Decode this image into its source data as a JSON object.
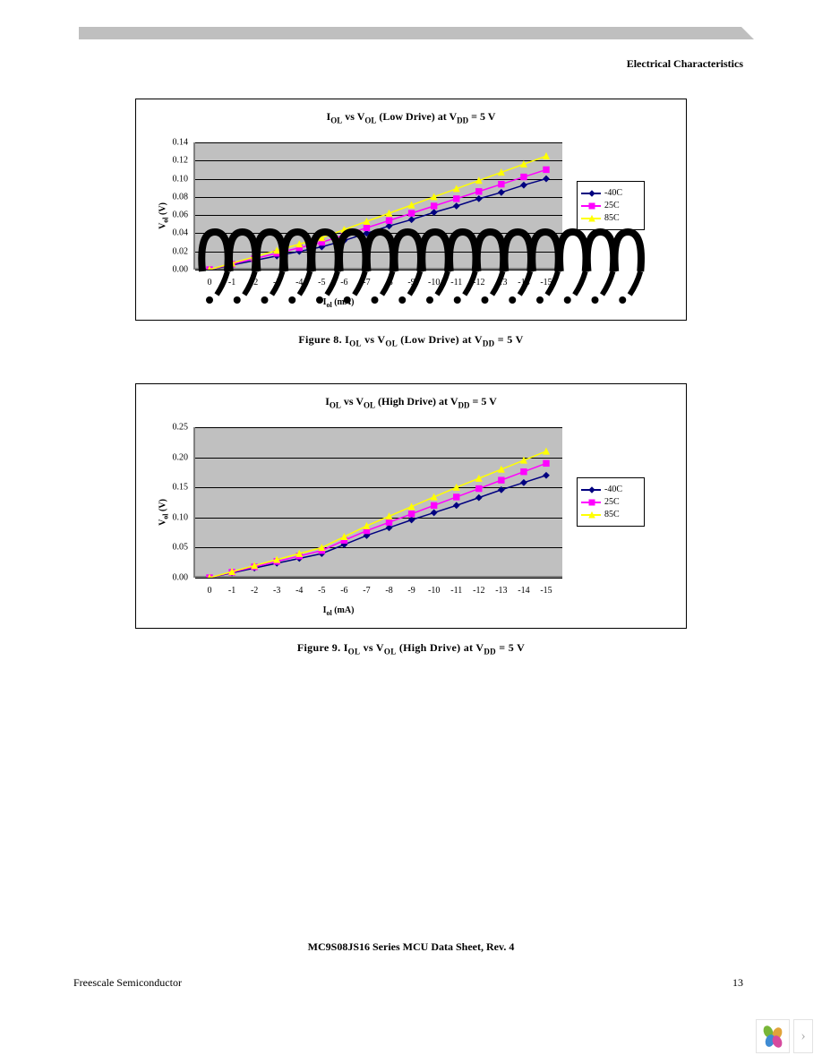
{
  "page": {
    "section_header": "Electrical Characteristics",
    "footer_title": "MC9S08JS16 Series MCU Data Sheet, Rev. 4",
    "footer_left": "Freescale Semiconductor",
    "page_number": "13"
  },
  "chart1": {
    "type": "line",
    "title_parts": [
      "I",
      "OL",
      " vs V",
      "OL",
      " (Low Drive) at V",
      "DD",
      " = 5 V"
    ],
    "ylabel_parts": [
      "V",
      "ol",
      " (V)"
    ],
    "xlabel_parts": [
      "I",
      "ol",
      " (mA)"
    ],
    "x_categories": [
      "0",
      "-1",
      "-2",
      "-3",
      "-4",
      "-5",
      "-6",
      "-7",
      "-8",
      "-9",
      "-10",
      "-11",
      "-12",
      "-13",
      "-14",
      "-15"
    ],
    "ylim": [
      0,
      0.14
    ],
    "ytick_step": 0.02,
    "yticks": [
      "0.00",
      "0.02",
      "0.04",
      "0.06",
      "0.08",
      "0.10",
      "0.12",
      "0.14"
    ],
    "plot_bg": "#c0c0c0",
    "grid_color": "#000000",
    "series": [
      {
        "name": "-40C",
        "color": "#000080",
        "marker": "diamond",
        "values": [
          0.0,
          0.005,
          0.01,
          0.015,
          0.02,
          0.025,
          0.032,
          0.04,
          0.048,
          0.055,
          0.063,
          0.07,
          0.078,
          0.085,
          0.093,
          0.1
        ]
      },
      {
        "name": "25C",
        "color": "#ff00ff",
        "marker": "square",
        "values": [
          0.0,
          0.006,
          0.012,
          0.018,
          0.024,
          0.03,
          0.038,
          0.046,
          0.054,
          0.062,
          0.07,
          0.078,
          0.086,
          0.094,
          0.102,
          0.11
        ]
      },
      {
        "name": "85C",
        "color": "#ffff00",
        "marker": "triangle",
        "values": [
          0.0,
          0.007,
          0.014,
          0.021,
          0.028,
          0.035,
          0.044,
          0.053,
          0.062,
          0.071,
          0.08,
          0.089,
          0.098,
          0.107,
          0.116,
          0.125
        ]
      }
    ],
    "caption_parts": [
      "Figure 8. I",
      "OL",
      " vs V",
      "OL",
      " (Low Drive) at V",
      "DD",
      " = 5 V"
    ],
    "legend_pos": "right-middle",
    "show_artifact_overlay": true
  },
  "chart2": {
    "type": "line",
    "title_parts": [
      "I",
      "OL",
      " vs V",
      "OL",
      " (High Drive) at V",
      "DD",
      " = 5 V"
    ],
    "ylabel_parts": [
      "V",
      "ol",
      " (V)"
    ],
    "xlabel_parts": [
      "I",
      "ol",
      " (mA)"
    ],
    "x_categories": [
      "0",
      "-1",
      "-2",
      "-3",
      "-4",
      "-5",
      "-6",
      "-7",
      "-8",
      "-9",
      "-10",
      "-11",
      "-12",
      "-13",
      "-14",
      "-15"
    ],
    "ylim": [
      0,
      0.25
    ],
    "ytick_step": 0.05,
    "yticks": [
      "0.00",
      "0.05",
      "0.10",
      "0.15",
      "0.20",
      "0.25"
    ],
    "plot_bg": "#c0c0c0",
    "grid_color": "#000000",
    "series": [
      {
        "name": "-40C",
        "color": "#000080",
        "marker": "diamond",
        "values": [
          0.0,
          0.008,
          0.016,
          0.024,
          0.032,
          0.04,
          0.055,
          0.07,
          0.083,
          0.096,
          0.108,
          0.12,
          0.133,
          0.146,
          0.158,
          0.17
        ]
      },
      {
        "name": "25C",
        "color": "#ff00ff",
        "marker": "square",
        "values": [
          0.0,
          0.009,
          0.018,
          0.027,
          0.036,
          0.045,
          0.062,
          0.078,
          0.092,
          0.106,
          0.12,
          0.134,
          0.148,
          0.162,
          0.176,
          0.19
        ]
      },
      {
        "name": "85C",
        "color": "#ffff00",
        "marker": "triangle",
        "values": [
          0.0,
          0.01,
          0.02,
          0.03,
          0.04,
          0.05,
          0.068,
          0.086,
          0.102,
          0.118,
          0.134,
          0.15,
          0.165,
          0.18,
          0.195,
          0.21
        ]
      }
    ],
    "caption_parts": [
      "Figure 9. I",
      "OL",
      " vs V",
      "OL",
      " (High Drive) at V",
      "DD",
      " = 5 V"
    ],
    "legend_pos": "right-middle",
    "show_artifact_overlay": false
  },
  "artifact": {
    "color": "#000000",
    "text": "???????????????"
  },
  "brand_colors": [
    "#78b638",
    "#e1a33a",
    "#3e8bd3",
    "#d64a9e"
  ]
}
